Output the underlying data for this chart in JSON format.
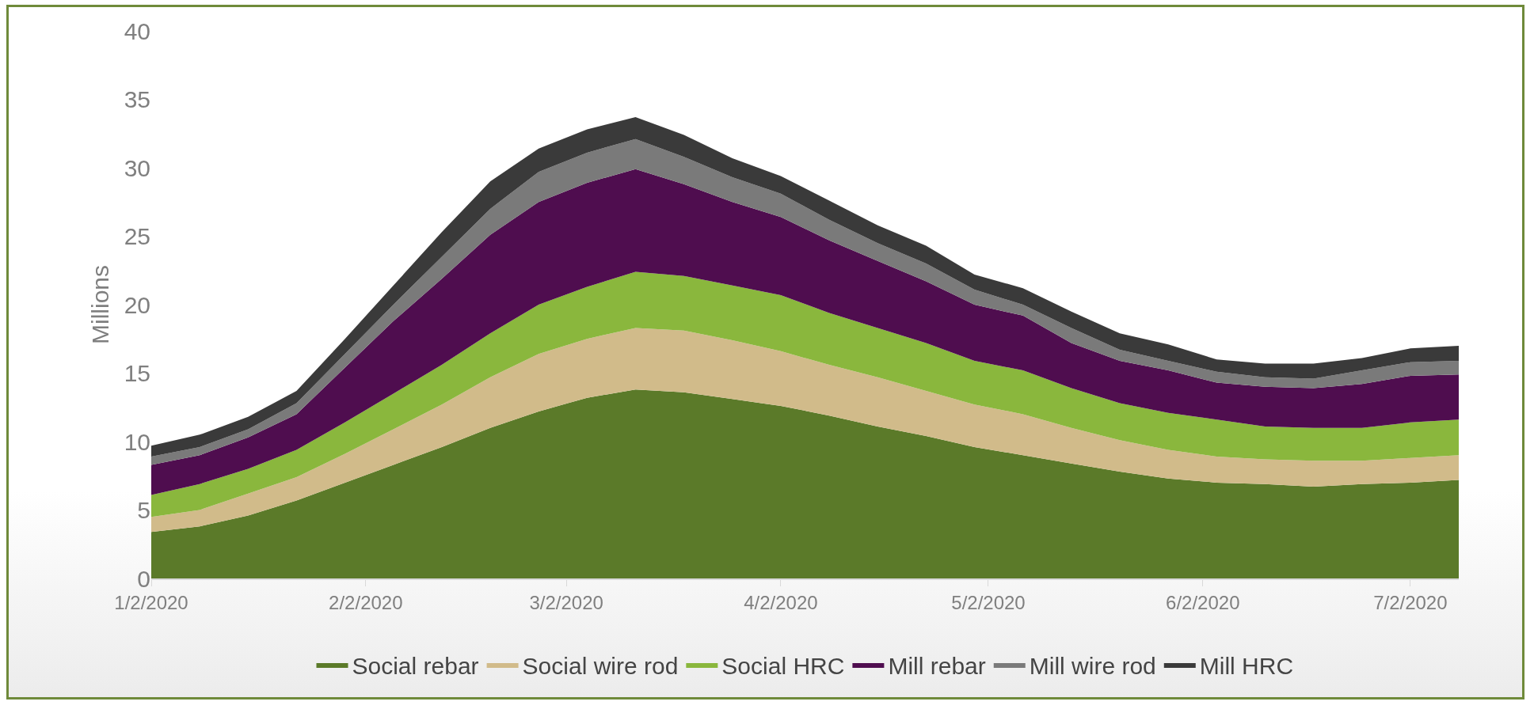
{
  "chart_data": {
    "type": "area",
    "stacked": true,
    "ylabel": "Millions",
    "x": [
      "2020-01-02",
      "2020-01-09",
      "2020-01-16",
      "2020-01-23",
      "2020-01-30",
      "2020-02-06",
      "2020-02-13",
      "2020-02-20",
      "2020-02-27",
      "2020-03-05",
      "2020-03-12",
      "2020-03-19",
      "2020-03-26",
      "2020-04-02",
      "2020-04-09",
      "2020-04-16",
      "2020-04-23",
      "2020-04-30",
      "2020-05-07",
      "2020-05-14",
      "2020-05-21",
      "2020-05-28",
      "2020-06-04",
      "2020-06-11",
      "2020-06-18",
      "2020-06-25",
      "2020-07-02",
      "2020-07-09"
    ],
    "series": [
      {
        "name": "Social rebar",
        "color": "#5b7a29",
        "values": [
          3.4,
          3.8,
          4.6,
          5.7,
          7.0,
          8.3,
          9.6,
          11.0,
          12.2,
          13.2,
          13.8,
          13.6,
          13.1,
          12.6,
          11.9,
          11.1,
          10.4,
          9.6,
          9.0,
          8.4,
          7.8,
          7.3,
          7.0,
          6.9,
          6.7,
          6.9,
          7.0,
          7.2
        ]
      },
      {
        "name": "Social wire rod",
        "color": "#d1bb8a",
        "values": [
          1.1,
          1.2,
          1.6,
          1.7,
          2.1,
          2.6,
          3.1,
          3.7,
          4.2,
          4.3,
          4.5,
          4.5,
          4.3,
          4.0,
          3.7,
          3.6,
          3.3,
          3.1,
          3.0,
          2.6,
          2.3,
          2.1,
          1.9,
          1.8,
          1.9,
          1.7,
          1.8,
          1.8
        ]
      },
      {
        "name": "Social HRC",
        "color": "#8ab73d",
        "values": [
          1.6,
          1.9,
          1.8,
          2.0,
          2.3,
          2.6,
          2.9,
          3.2,
          3.6,
          3.8,
          4.1,
          4.0,
          4.0,
          4.1,
          3.8,
          3.6,
          3.5,
          3.2,
          3.2,
          2.9,
          2.7,
          2.7,
          2.7,
          2.4,
          2.4,
          2.4,
          2.6,
          2.6
        ]
      },
      {
        "name": "Mill rebar",
        "color": "#4f0d4f",
        "values": [
          2.2,
          2.1,
          2.3,
          2.6,
          4.0,
          5.3,
          6.3,
          7.2,
          7.5,
          7.6,
          7.5,
          6.7,
          6.1,
          5.7,
          5.3,
          4.9,
          4.5,
          4.1,
          4.0,
          3.3,
          3.1,
          3.1,
          2.7,
          2.9,
          2.9,
          3.2,
          3.4,
          3.3
        ]
      },
      {
        "name": "Mill wire rod",
        "color": "#7a7a7a",
        "values": [
          0.6,
          0.6,
          0.6,
          0.8,
          1.0,
          1.2,
          1.6,
          1.9,
          2.2,
          2.2,
          2.2,
          2.0,
          1.8,
          1.7,
          1.5,
          1.3,
          1.3,
          1.1,
          0.8,
          1.1,
          0.8,
          0.7,
          0.8,
          0.7,
          0.7,
          1.0,
          1.0,
          1.0
        ]
      },
      {
        "name": "Mill HRC",
        "color": "#3a3a3a",
        "values": [
          0.8,
          0.9,
          0.9,
          0.9,
          1.1,
          1.4,
          1.8,
          2.0,
          1.7,
          1.7,
          1.6,
          1.6,
          1.4,
          1.3,
          1.4,
          1.3,
          1.3,
          1.1,
          1.2,
          1.2,
          1.2,
          1.2,
          0.9,
          1.0,
          1.1,
          0.9,
          1.0,
          1.1
        ]
      }
    ],
    "xlim": [
      "2020-01-02",
      "2020-07-09"
    ],
    "xticks": [
      {
        "value": "2020-01-02",
        "label": "1/2/2020"
      },
      {
        "value": "2020-02-02",
        "label": "2/2/2020"
      },
      {
        "value": "2020-03-02",
        "label": "3/2/2020"
      },
      {
        "value": "2020-04-02",
        "label": "4/2/2020"
      },
      {
        "value": "2020-05-02",
        "label": "5/2/2020"
      },
      {
        "value": "2020-06-02",
        "label": "6/2/2020"
      },
      {
        "value": "2020-07-02",
        "label": "7/2/2020"
      }
    ],
    "ylim": [
      0,
      40
    ],
    "yticks": [
      0,
      5,
      10,
      15,
      20,
      25,
      30,
      35,
      40
    ],
    "grid": false,
    "legend": "bottom"
  }
}
